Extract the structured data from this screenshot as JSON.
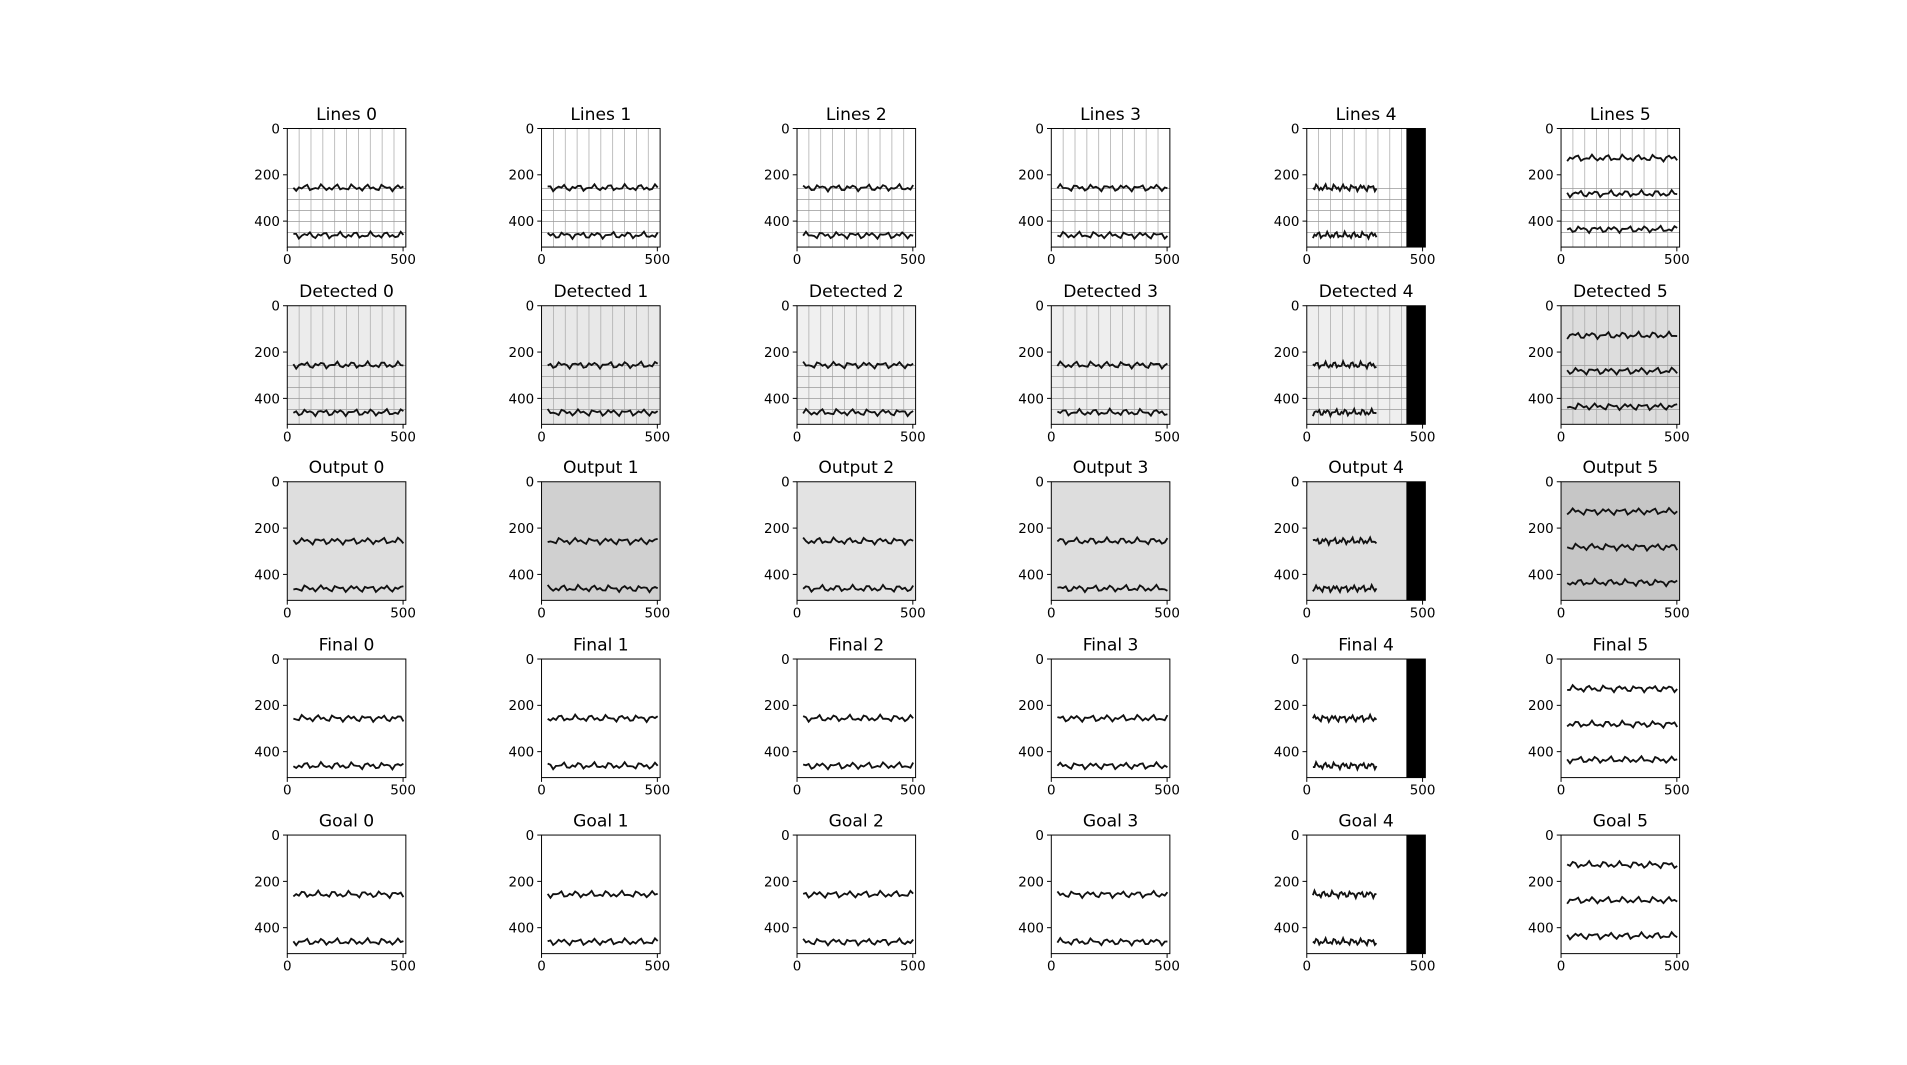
{
  "chart_data": [
    {
      "type": "image",
      "title": "Lines 0",
      "background": "#ffffff",
      "grid": true,
      "xlim": [
        0,
        512
      ],
      "ylim": [
        512,
        0
      ],
      "xticks": [
        0,
        500
      ],
      "yticks": [
        0,
        200,
        400
      ]
    },
    {
      "type": "image",
      "title": "Lines 1",
      "background": "#ffffff",
      "grid": true,
      "xlim": [
        0,
        512
      ],
      "ylim": [
        512,
        0
      ],
      "xticks": [
        0,
        500
      ],
      "yticks": [
        0,
        200,
        400
      ]
    },
    {
      "type": "image",
      "title": "Lines 2",
      "background": "#ffffff",
      "grid": true,
      "xlim": [
        0,
        512
      ],
      "ylim": [
        512,
        0
      ],
      "xticks": [
        0,
        500
      ],
      "yticks": [
        0,
        200,
        400
      ]
    },
    {
      "type": "image",
      "title": "Lines 3",
      "background": "#ffffff",
      "grid": true,
      "xlim": [
        0,
        512
      ],
      "ylim": [
        512,
        0
      ],
      "xticks": [
        0,
        500
      ],
      "yticks": [
        0,
        200,
        400
      ]
    },
    {
      "type": "image",
      "title": "Lines 4",
      "background": "#ffffff",
      "grid": true,
      "xlim": [
        0,
        512
      ],
      "ylim": [
        512,
        0
      ],
      "xticks": [
        0,
        500
      ],
      "yticks": [
        0,
        200,
        400
      ]
    },
    {
      "type": "image",
      "title": "Lines 5",
      "background": "#ffffff",
      "grid": true,
      "xlim": [
        0,
        512
      ],
      "ylim": [
        512,
        0
      ],
      "xticks": [
        0,
        500
      ],
      "yticks": [
        0,
        200,
        400
      ]
    },
    {
      "type": "image",
      "title": "Detected 0",
      "background": "#ececec",
      "grid": true,
      "xlim": [
        0,
        512
      ],
      "ylim": [
        512,
        0
      ],
      "xticks": [
        0,
        500
      ],
      "yticks": [
        0,
        200,
        400
      ]
    },
    {
      "type": "image",
      "title": "Detected 1",
      "background": "#e8e8e8",
      "grid": true,
      "xlim": [
        0,
        512
      ],
      "ylim": [
        512,
        0
      ],
      "xticks": [
        0,
        500
      ],
      "yticks": [
        0,
        200,
        400
      ]
    },
    {
      "type": "image",
      "title": "Detected 2",
      "background": "#f0f0f0",
      "grid": true,
      "xlim": [
        0,
        512
      ],
      "ylim": [
        512,
        0
      ],
      "xticks": [
        0,
        500
      ],
      "yticks": [
        0,
        200,
        400
      ]
    },
    {
      "type": "image",
      "title": "Detected 3",
      "background": "#eeeeee",
      "grid": true,
      "xlim": [
        0,
        512
      ],
      "ylim": [
        512,
        0
      ],
      "xticks": [
        0,
        500
      ],
      "yticks": [
        0,
        200,
        400
      ]
    },
    {
      "type": "image",
      "title": "Detected 4",
      "background": "#efefef",
      "grid": true,
      "xlim": [
        0,
        512
      ],
      "ylim": [
        512,
        0
      ],
      "xticks": [
        0,
        500
      ],
      "yticks": [
        0,
        200,
        400
      ]
    },
    {
      "type": "image",
      "title": "Detected 5",
      "background": "#dddddd",
      "grid": true,
      "xlim": [
        0,
        512
      ],
      "ylim": [
        512,
        0
      ],
      "xticks": [
        0,
        500
      ],
      "yticks": [
        0,
        200,
        400
      ]
    },
    {
      "type": "image",
      "title": "Output 0",
      "background": "#dedede",
      "grid": false,
      "xlim": [
        0,
        512
      ],
      "ylim": [
        512,
        0
      ],
      "xticks": [
        0,
        500
      ],
      "yticks": [
        0,
        200,
        400
      ]
    },
    {
      "type": "image",
      "title": "Output 1",
      "background": "#d0d0d0",
      "grid": false,
      "xlim": [
        0,
        512
      ],
      "ylim": [
        512,
        0
      ],
      "xticks": [
        0,
        500
      ],
      "yticks": [
        0,
        200,
        400
      ]
    },
    {
      "type": "image",
      "title": "Output 2",
      "background": "#e3e3e3",
      "grid": false,
      "xlim": [
        0,
        512
      ],
      "ylim": [
        512,
        0
      ],
      "xticks": [
        0,
        500
      ],
      "yticks": [
        0,
        200,
        400
      ]
    },
    {
      "type": "image",
      "title": "Output 3",
      "background": "#dddddd",
      "grid": false,
      "xlim": [
        0,
        512
      ],
      "ylim": [
        512,
        0
      ],
      "xticks": [
        0,
        500
      ],
      "yticks": [
        0,
        200,
        400
      ]
    },
    {
      "type": "image",
      "title": "Output 4",
      "background": "#e0e0e0",
      "grid": false,
      "xlim": [
        0,
        512
      ],
      "ylim": [
        512,
        0
      ],
      "xticks": [
        0,
        500
      ],
      "yticks": [
        0,
        200,
        400
      ]
    },
    {
      "type": "image",
      "title": "Output 5",
      "background": "#c6c6c6",
      "grid": false,
      "xlim": [
        0,
        512
      ],
      "ylim": [
        512,
        0
      ],
      "xticks": [
        0,
        500
      ],
      "yticks": [
        0,
        200,
        400
      ]
    },
    {
      "type": "image",
      "title": "Final 0",
      "background": "#ffffff",
      "grid": false,
      "xlim": [
        0,
        512
      ],
      "ylim": [
        512,
        0
      ],
      "xticks": [
        0,
        500
      ],
      "yticks": [
        0,
        200,
        400
      ]
    },
    {
      "type": "image",
      "title": "Final 1",
      "background": "#ffffff",
      "grid": false,
      "xlim": [
        0,
        512
      ],
      "ylim": [
        512,
        0
      ],
      "xticks": [
        0,
        500
      ],
      "yticks": [
        0,
        200,
        400
      ]
    },
    {
      "type": "image",
      "title": "Final 2",
      "background": "#ffffff",
      "grid": false,
      "xlim": [
        0,
        512
      ],
      "ylim": [
        512,
        0
      ],
      "xticks": [
        0,
        500
      ],
      "yticks": [
        0,
        200,
        400
      ]
    },
    {
      "type": "image",
      "title": "Final 3",
      "background": "#ffffff",
      "grid": false,
      "xlim": [
        0,
        512
      ],
      "ylim": [
        512,
        0
      ],
      "xticks": [
        0,
        500
      ],
      "yticks": [
        0,
        200,
        400
      ]
    },
    {
      "type": "image",
      "title": "Final 4",
      "background": "#ffffff",
      "grid": false,
      "xlim": [
        0,
        512
      ],
      "ylim": [
        512,
        0
      ],
      "xticks": [
        0,
        500
      ],
      "yticks": [
        0,
        200,
        400
      ]
    },
    {
      "type": "image",
      "title": "Final 5",
      "background": "#ffffff",
      "grid": false,
      "xlim": [
        0,
        512
      ],
      "ylim": [
        512,
        0
      ],
      "xticks": [
        0,
        500
      ],
      "yticks": [
        0,
        200,
        400
      ]
    },
    {
      "type": "image",
      "title": "Goal 0",
      "background": "#ffffff",
      "grid": false,
      "xlim": [
        0,
        512
      ],
      "ylim": [
        512,
        0
      ],
      "xticks": [
        0,
        500
      ],
      "yticks": [
        0,
        200,
        400
      ]
    },
    {
      "type": "image",
      "title": "Goal 1",
      "background": "#ffffff",
      "grid": false,
      "xlim": [
        0,
        512
      ],
      "ylim": [
        512,
        0
      ],
      "xticks": [
        0,
        500
      ],
      "yticks": [
        0,
        200,
        400
      ]
    },
    {
      "type": "image",
      "title": "Goal 2",
      "background": "#ffffff",
      "grid": false,
      "xlim": [
        0,
        512
      ],
      "ylim": [
        512,
        0
      ],
      "xticks": [
        0,
        500
      ],
      "yticks": [
        0,
        200,
        400
      ]
    },
    {
      "type": "image",
      "title": "Goal 3",
      "background": "#ffffff",
      "grid": false,
      "xlim": [
        0,
        512
      ],
      "ylim": [
        512,
        0
      ],
      "xticks": [
        0,
        500
      ],
      "yticks": [
        0,
        200,
        400
      ]
    },
    {
      "type": "image",
      "title": "Goal 4",
      "background": "#ffffff",
      "grid": false,
      "xlim": [
        0,
        512
      ],
      "ylim": [
        512,
        0
      ],
      "xticks": [
        0,
        500
      ],
      "yticks": [
        0,
        200,
        400
      ]
    },
    {
      "type": "image",
      "title": "Goal 5",
      "background": "#ffffff",
      "grid": false,
      "xlim": [
        0,
        512
      ],
      "ylim": [
        512,
        0
      ],
      "xticks": [
        0,
        500
      ],
      "yticks": [
        0,
        200,
        400
      ]
    }
  ]
}
